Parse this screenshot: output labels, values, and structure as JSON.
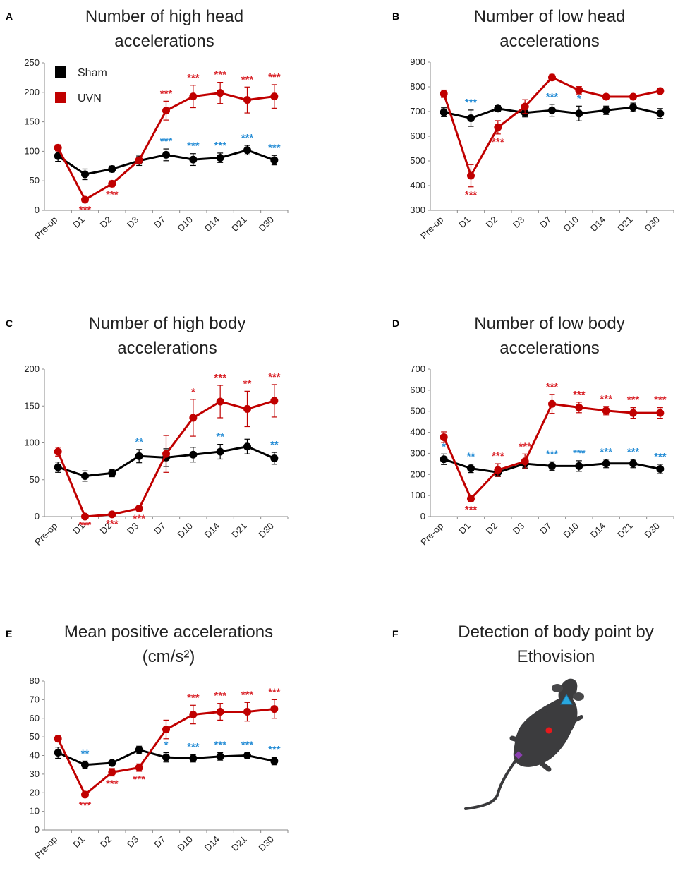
{
  "colors": {
    "sham": "#000000",
    "uvn": "#c00000",
    "sig_uvn": "#d9252b",
    "sig_sham": "#2a8fd6"
  },
  "chart_data": [
    {
      "panel": "A",
      "type": "line",
      "title": [
        "Number of high head",
        "accelerations"
      ],
      "categories": [
        "Pre-op",
        "D1",
        "D2",
        "D3",
        "D7",
        "D10",
        "D14",
        "D21",
        "D30"
      ],
      "ylim": [
        0,
        250
      ],
      "yticks": [
        0,
        50,
        100,
        150,
        200,
        250
      ],
      "legend": [
        "Sham",
        "UVN"
      ],
      "series": [
        {
          "name": "Sham",
          "values": [
            92,
            61,
            70,
            84,
            94,
            86,
            89,
            102,
            85
          ],
          "errors": [
            9,
            9,
            5,
            8,
            10,
            10,
            8,
            8,
            8
          ]
        },
        {
          "name": "UVN",
          "values": [
            106,
            18,
            45,
            85,
            169,
            193,
            199,
            187,
            193
          ],
          "errors": [
            5,
            4,
            5,
            5,
            16,
            19,
            18,
            22,
            20
          ]
        }
      ],
      "sig_uvn": [
        "",
        "***",
        "***",
        "",
        "***",
        "***",
        "***",
        "***",
        "***"
      ],
      "sig_sham": [
        "",
        "",
        "",
        "",
        "***",
        "***",
        "***",
        "***",
        "***"
      ]
    },
    {
      "panel": "B",
      "type": "line",
      "title": [
        "Number of low head",
        "accelerations"
      ],
      "categories": [
        "Pre-op",
        "D1",
        "D2",
        "D3",
        "D7",
        "D10",
        "D14",
        "D21",
        "D30"
      ],
      "ylim": [
        300,
        900
      ],
      "yticks": [
        300,
        400,
        500,
        600,
        700,
        800,
        900
      ],
      "series": [
        {
          "name": "Sham",
          "values": [
            697,
            673,
            712,
            695,
            705,
            692,
            705,
            717,
            692
          ],
          "errors": [
            18,
            33,
            12,
            17,
            24,
            30,
            17,
            17,
            20
          ]
        },
        {
          "name": "UVN",
          "values": [
            772,
            440,
            636,
            720,
            838,
            786,
            760,
            760,
            783
          ],
          "errors": [
            15,
            45,
            27,
            28,
            12,
            15,
            8,
            8,
            10
          ]
        }
      ],
      "sig_uvn": [
        "",
        "***",
        "***",
        "",
        "",
        "",
        "",
        "",
        ""
      ],
      "sig_sham": [
        "",
        "***",
        "",
        "",
        "***",
        "*",
        "",
        "",
        ""
      ]
    },
    {
      "panel": "C",
      "type": "line",
      "title": [
        "Number of high body",
        "accelerations"
      ],
      "categories": [
        "Pre-op",
        "D1",
        "D2",
        "D3",
        "D7",
        "D10",
        "D14",
        "D21",
        "D30"
      ],
      "ylim": [
        0,
        200
      ],
      "yticks": [
        0,
        50,
        100,
        150,
        200
      ],
      "series": [
        {
          "name": "Sham",
          "values": [
            67,
            55,
            59,
            82,
            80,
            84,
            88,
            95,
            79
          ],
          "errors": [
            7,
            7,
            5,
            9,
            12,
            10,
            10,
            10,
            8
          ]
        },
        {
          "name": "UVN",
          "values": [
            88,
            0,
            3,
            11,
            85,
            134,
            156,
            146,
            157
          ],
          "errors": [
            6,
            1,
            2,
            3,
            25,
            25,
            22,
            24,
            22
          ]
        }
      ],
      "sig_uvn": [
        "",
        "***",
        "***",
        "***",
        "",
        "*",
        "***",
        "**",
        "***"
      ],
      "sig_sham": [
        "",
        "",
        "",
        "**",
        "",
        "",
        "**",
        "",
        "**"
      ]
    },
    {
      "panel": "D",
      "type": "line",
      "title": [
        "Number of low body",
        "accelerations"
      ],
      "categories": [
        "Pre-op",
        "D1",
        "D2",
        "D3",
        "D7",
        "D10",
        "D14",
        "D21",
        "D30"
      ],
      "ylim": [
        0,
        700
      ],
      "yticks": [
        0,
        100,
        200,
        300,
        400,
        500,
        600,
        700
      ],
      "series": [
        {
          "name": "Sham",
          "values": [
            272,
            229,
            210,
            251,
            240,
            240,
            252,
            252,
            226
          ],
          "errors": [
            25,
            20,
            20,
            20,
            20,
            25,
            20,
            20,
            22
          ]
        },
        {
          "name": "UVN",
          "values": [
            377,
            85,
            221,
            262,
            535,
            518,
            503,
            492,
            492
          ],
          "errors": [
            25,
            15,
            30,
            35,
            45,
            25,
            20,
            25,
            25
          ]
        }
      ],
      "sig_uvn": [
        "",
        "***",
        "***",
        "***",
        "***",
        "***",
        "***",
        "***",
        "***"
      ],
      "sig_sham": [
        "*",
        "**",
        "",
        "",
        "***",
        "***",
        "***",
        "***",
        "***"
      ]
    },
    {
      "panel": "E",
      "type": "line",
      "title": [
        "Mean positive accelerations",
        "(cm/s²)"
      ],
      "categories": [
        "Pre-op",
        "D1",
        "D2",
        "D3",
        "D7",
        "D10",
        "D14",
        "D21",
        "D30"
      ],
      "ylim": [
        0,
        80
      ],
      "yticks": [
        0,
        10,
        20,
        30,
        40,
        50,
        60,
        70,
        80
      ],
      "series": [
        {
          "name": "Sham",
          "values": [
            41.5,
            35,
            36,
            43,
            39,
            38.5,
            39.5,
            40,
            37
          ],
          "errors": [
            3,
            2,
            1,
            2,
            2.5,
            2,
            2,
            1.5,
            2
          ]
        },
        {
          "name": "UVN",
          "values": [
            49,
            19,
            31,
            33.5,
            54,
            62,
            63.5,
            63.5,
            65
          ],
          "errors": [
            1.5,
            1.5,
            2,
            2,
            5,
            5,
            4.5,
            5,
            5
          ]
        }
      ],
      "sig_uvn": [
        "",
        "***",
        "***",
        "***",
        "",
        "***",
        "***",
        "***",
        "***"
      ],
      "sig_sham": [
        "",
        "**",
        "",
        "",
        "*",
        "***",
        "***",
        "***",
        "***"
      ]
    }
  ],
  "panel_f": {
    "panel": "F",
    "title": [
      "Detection of body point by",
      "Ethovision"
    ],
    "markers": [
      {
        "name": "nose-point",
        "color": "#29a8e0"
      },
      {
        "name": "center-point",
        "color": "#e8191c"
      },
      {
        "name": "tail-base-point",
        "color": "#8b3fb0"
      }
    ]
  }
}
